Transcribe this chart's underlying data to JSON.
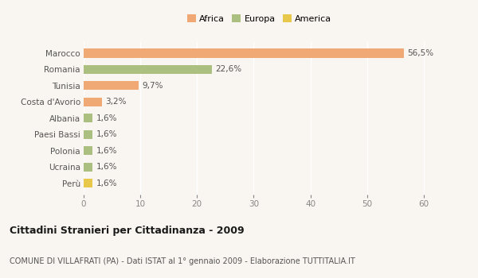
{
  "categories": [
    "Marocco",
    "Romania",
    "Tunisia",
    "Costa d'Avorio",
    "Albania",
    "Paesi Bassi",
    "Polonia",
    "Ucraina",
    "Perù"
  ],
  "values": [
    56.5,
    22.6,
    9.7,
    3.2,
    1.6,
    1.6,
    1.6,
    1.6,
    1.6
  ],
  "labels": [
    "56,5%",
    "22,6%",
    "9,7%",
    "3,2%",
    "1,6%",
    "1,6%",
    "1,6%",
    "1,6%",
    "1,6%"
  ],
  "colors": [
    "#F0A875",
    "#AABF80",
    "#F0A875",
    "#F0A875",
    "#AABF80",
    "#AABF80",
    "#AABF80",
    "#AABF80",
    "#E8C84A"
  ],
  "legend": [
    {
      "label": "Africa",
      "color": "#F0A875"
    },
    {
      "label": "Europa",
      "color": "#AABF80"
    },
    {
      "label": "America",
      "color": "#E8C84A"
    }
  ],
  "xlim": [
    0,
    62
  ],
  "xticks": [
    0,
    10,
    20,
    30,
    40,
    50,
    60
  ],
  "title": "Cittadini Stranieri per Cittadinanza - 2009",
  "subtitle": "COMUNE DI VILLAFRATI (PA) - Dati ISTAT al 1° gennaio 2009 - Elaborazione TUTTITALIA.IT",
  "background_color": "#f9f5f0",
  "bar_height": 0.55,
  "label_fontsize": 7.5,
  "ytick_fontsize": 7.5,
  "xtick_fontsize": 7.5,
  "title_fontsize": 9,
  "subtitle_fontsize": 7,
  "legend_fontsize": 8
}
